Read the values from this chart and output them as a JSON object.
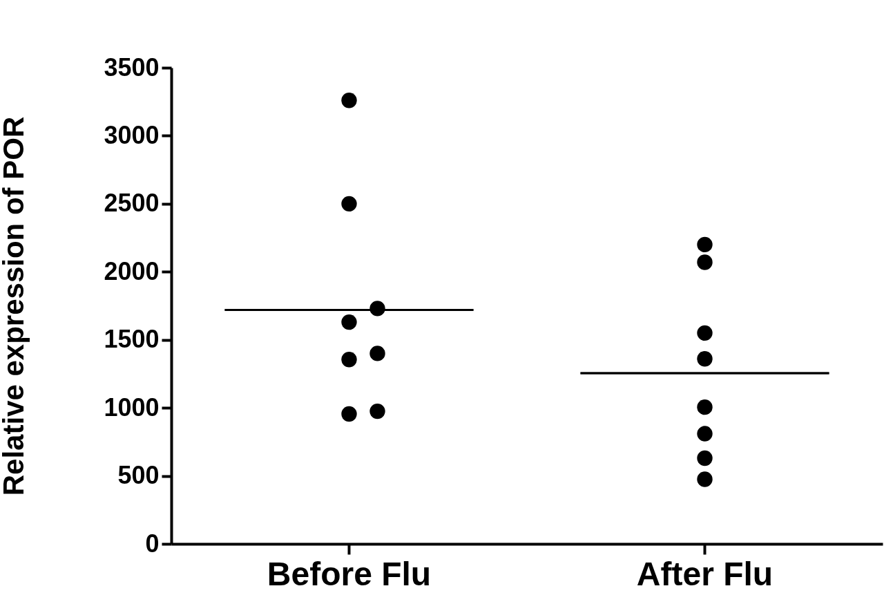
{
  "chart_data": {
    "type": "scatter",
    "ylabel": "Relative expression of POR",
    "categories": [
      "Before Flu",
      "After Flu"
    ],
    "ylim": [
      0,
      3500
    ],
    "yticks": [
      0,
      500,
      1000,
      1500,
      2000,
      2500,
      3000,
      3500
    ],
    "grid": false,
    "marker": "circle",
    "series": [
      {
        "type": "scatter",
        "color": "#000000",
        "x": [
          "Before Flu",
          "Before Flu",
          "Before Flu",
          "Before Flu",
          "Before Flu",
          "Before Flu",
          "Before Flu",
          "Before Flu",
          "After Flu",
          "After Flu",
          "After Flu",
          "After Flu",
          "After Flu",
          "After Flu",
          "After Flu",
          "After Flu"
        ],
        "values": [
          3260,
          2500,
          1730,
          1630,
          1400,
          1355,
          955,
          975,
          2200,
          2070,
          1550,
          1360,
          1005,
          810,
          630,
          475
        ]
      },
      {
        "type": "box",
        "color": "#000000",
        "boxes": [
          {
            "low": 1720,
            "q1": 1720,
            "median": 1720,
            "q3": 1720,
            "high": 1720
          },
          {
            "low": 1255,
            "q1": 1255,
            "median": 1255,
            "q3": 1255,
            "high": 1255
          }
        ]
      }
    ]
  }
}
